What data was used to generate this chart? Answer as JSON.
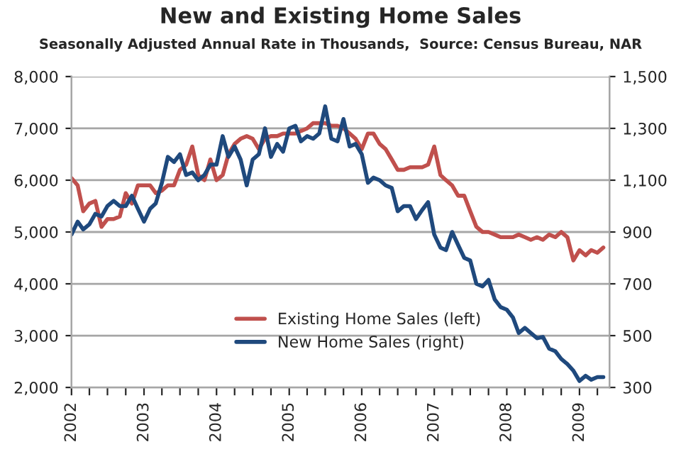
{
  "chart_data": {
    "type": "line",
    "title": "New and Existing Home Sales",
    "subtitle": "Seasonally Adjusted Annual Rate in Thousands,  Source: Census Bureau, NAR",
    "x": [
      "2002-01",
      "2002-02",
      "2002-03",
      "2002-04",
      "2002-05",
      "2002-06",
      "2002-07",
      "2002-08",
      "2002-09",
      "2002-10",
      "2002-11",
      "2002-12",
      "2003-01",
      "2003-02",
      "2003-03",
      "2003-04",
      "2003-05",
      "2003-06",
      "2003-07",
      "2003-08",
      "2003-09",
      "2003-10",
      "2003-11",
      "2003-12",
      "2004-01",
      "2004-02",
      "2004-03",
      "2004-04",
      "2004-05",
      "2004-06",
      "2004-07",
      "2004-08",
      "2004-09",
      "2004-10",
      "2004-11",
      "2004-12",
      "2005-01",
      "2005-02",
      "2005-03",
      "2005-04",
      "2005-05",
      "2005-06",
      "2005-07",
      "2005-08",
      "2005-09",
      "2005-10",
      "2005-11",
      "2005-12",
      "2006-01",
      "2006-02",
      "2006-03",
      "2006-04",
      "2006-05",
      "2006-06",
      "2006-07",
      "2006-08",
      "2006-09",
      "2006-10",
      "2006-11",
      "2006-12",
      "2007-01",
      "2007-02",
      "2007-03",
      "2007-04",
      "2007-05",
      "2007-06",
      "2007-07",
      "2007-08",
      "2007-09",
      "2007-10",
      "2007-11",
      "2007-12",
      "2008-01",
      "2008-02",
      "2008-03",
      "2008-04",
      "2008-05",
      "2008-06",
      "2008-07",
      "2008-08",
      "2008-09",
      "2008-10",
      "2008-11",
      "2008-12",
      "2009-01",
      "2009-02",
      "2009-03",
      "2009-04",
      "2009-05"
    ],
    "series": [
      {
        "name": "Existing Home Sales (left)",
        "color": "#c0504d",
        "values": [
          6040,
          5900,
          5400,
          5550,
          5600,
          5100,
          5250,
          5250,
          5300,
          5750,
          5550,
          5900,
          5900,
          5900,
          5750,
          5800,
          5900,
          5900,
          6200,
          6300,
          6650,
          6100,
          6000,
          6400,
          6000,
          6100,
          6500,
          6700,
          6800,
          6850,
          6800,
          6600,
          6800,
          6850,
          6850,
          6900,
          6900,
          6900,
          6950,
          7000,
          7100,
          7100,
          7100,
          7050,
          7050,
          7000,
          6900,
          6800,
          6600,
          6900,
          6900,
          6700,
          6600,
          6400,
          6200,
          6200,
          6250,
          6250,
          6250,
          6300,
          6650,
          6100,
          6000,
          5900,
          5700,
          5700,
          5400,
          5100,
          5000,
          5000,
          4950,
          4900,
          4900,
          4900,
          4950,
          4900,
          4850,
          4900,
          4850,
          4950,
          4900,
          5000,
          4900,
          4450,
          4650,
          4550,
          4650,
          4600,
          4700
        ]
      },
      {
        "name": "New Home Sales (right)",
        "color": "#1f497d",
        "axis": "y2",
        "values": [
          890,
          940,
          910,
          930,
          970,
          960,
          1000,
          1020,
          1000,
          1000,
          1040,
          990,
          940,
          990,
          1010,
          1090,
          1190,
          1170,
          1200,
          1120,
          1130,
          1100,
          1120,
          1160,
          1160,
          1270,
          1190,
          1230,
          1180,
          1080,
          1180,
          1200,
          1300,
          1190,
          1240,
          1210,
          1300,
          1310,
          1250,
          1270,
          1260,
          1280,
          1385,
          1260,
          1250,
          1336,
          1230,
          1240,
          1200,
          1090,
          1110,
          1100,
          1080,
          1070,
          980,
          1000,
          1000,
          950,
          985,
          1015,
          890,
          840,
          830,
          900,
          850,
          800,
          790,
          700,
          690,
          715,
          640,
          610,
          600,
          570,
          510,
          530,
          510,
          490,
          495,
          450,
          440,
          410,
          390,
          365,
          325,
          345,
          330,
          340,
          340
        ]
      }
    ],
    "xlim": [
      "2002-01",
      "2009-06"
    ],
    "xticks": [
      {
        "value": "2002-01",
        "label": "2002"
      },
      {
        "value": "2002-04",
        "label": null
      },
      {
        "value": "2002-07",
        "label": null
      },
      {
        "value": "2002-10",
        "label": null
      },
      {
        "value": "2003-01",
        "label": "2003"
      },
      {
        "value": "2003-04",
        "label": null
      },
      {
        "value": "2003-07",
        "label": null
      },
      {
        "value": "2003-10",
        "label": null
      },
      {
        "value": "2004-01",
        "label": "2004"
      },
      {
        "value": "2004-04",
        "label": null
      },
      {
        "value": "2004-07",
        "label": null
      },
      {
        "value": "2004-10",
        "label": null
      },
      {
        "value": "2005-01",
        "label": "2005"
      },
      {
        "value": "2005-04",
        "label": null
      },
      {
        "value": "2005-07",
        "label": null
      },
      {
        "value": "2005-10",
        "label": null
      },
      {
        "value": "2006-01",
        "label": "2006"
      },
      {
        "value": "2006-04",
        "label": null
      },
      {
        "value": "2006-07",
        "label": null
      },
      {
        "value": "2006-10",
        "label": null
      },
      {
        "value": "2007-01",
        "label": "2007"
      },
      {
        "value": "2007-04",
        "label": null
      },
      {
        "value": "2007-07",
        "label": null
      },
      {
        "value": "2007-10",
        "label": null
      },
      {
        "value": "2008-01",
        "label": "2008"
      },
      {
        "value": "2008-04",
        "label": null
      },
      {
        "value": "2008-07",
        "label": null
      },
      {
        "value": "2008-10",
        "label": null
      },
      {
        "value": "2009-01",
        "label": "2009"
      },
      {
        "value": "2009-04",
        "label": null
      }
    ],
    "ylim": [
      2000,
      8000
    ],
    "yticks": [
      {
        "value": 2000,
        "label": "2,000"
      },
      {
        "value": 3000,
        "label": "3,000"
      },
      {
        "value": 4000,
        "label": "4,000"
      },
      {
        "value": 5000,
        "label": "5,000"
      },
      {
        "value": 6000,
        "label": "6,000"
      },
      {
        "value": 7000,
        "label": "7,000"
      },
      {
        "value": 8000,
        "label": "8,000"
      }
    ],
    "y2lim": [
      300,
      1500
    ],
    "y2ticks": [
      300,
      500,
      700,
      900,
      {
        "value": 1100,
        "label": "1,100"
      },
      {
        "value": 1300,
        "label": "1,300"
      },
      {
        "value": 1500,
        "label": "1,500"
      }
    ],
    "grid": "y",
    "legend": "center",
    "line_style": "solid",
    "marker": "none"
  }
}
